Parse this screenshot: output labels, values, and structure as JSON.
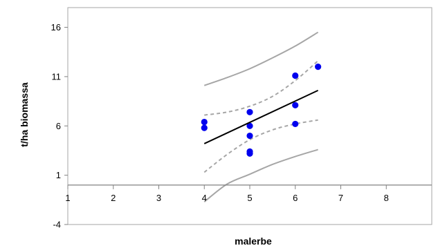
{
  "chart_data": {
    "type": "scatter",
    "title": "",
    "xlabel": "malerbe",
    "ylabel": "t/ha biomassa",
    "xlim": [
      1,
      9
    ],
    "ylim": [
      -4,
      18
    ],
    "x_ticks": [
      1,
      2,
      3,
      4,
      5,
      6,
      7,
      8
    ],
    "y_ticks": [
      -4,
      1,
      6,
      11,
      16
    ],
    "x_axis_crosses_y": 0,
    "grid": false,
    "legend": "none",
    "colors": {
      "points": "#0000ee",
      "fit": "#000000",
      "confidence_band": "#a6a6a6",
      "prediction_band": "#a6a6a6",
      "frame": "#a6a6a6",
      "axis": "#808080"
    },
    "series": [
      {
        "kind": "points",
        "x": [
          4,
          4,
          5,
          5,
          5,
          5,
          5,
          6,
          6,
          6,
          6.5
        ],
        "y": [
          6.4,
          5.8,
          7.4,
          6.0,
          5.0,
          3.4,
          3.2,
          11.1,
          8.1,
          6.2,
          12.0
        ]
      },
      {
        "kind": "fit-line",
        "x": [
          4,
          6.5
        ],
        "y": [
          4.2,
          9.6
        ]
      },
      {
        "kind": "confidence-upper",
        "x": [
          4,
          4.5,
          5,
          5.5,
          6,
          6.5
        ],
        "y": [
          7.1,
          7.4,
          8.0,
          9.0,
          10.6,
          12.6
        ]
      },
      {
        "kind": "confidence-lower",
        "x": [
          4,
          4.5,
          5,
          5.5,
          6,
          6.5
        ],
        "y": [
          1.3,
          3.1,
          4.6,
          5.6,
          6.2,
          6.6
        ]
      },
      {
        "kind": "prediction-upper",
        "x": [
          4,
          4.5,
          5,
          5.5,
          6,
          6.5
        ],
        "y": [
          10.1,
          10.9,
          11.8,
          12.9,
          14.1,
          15.5
        ]
      },
      {
        "kind": "prediction-lower",
        "x": [
          4,
          4.5,
          5,
          5.5,
          6,
          6.5
        ],
        "y": [
          -1.7,
          0.1,
          1.1,
          2.1,
          2.9,
          3.6
        ]
      }
    ]
  }
}
